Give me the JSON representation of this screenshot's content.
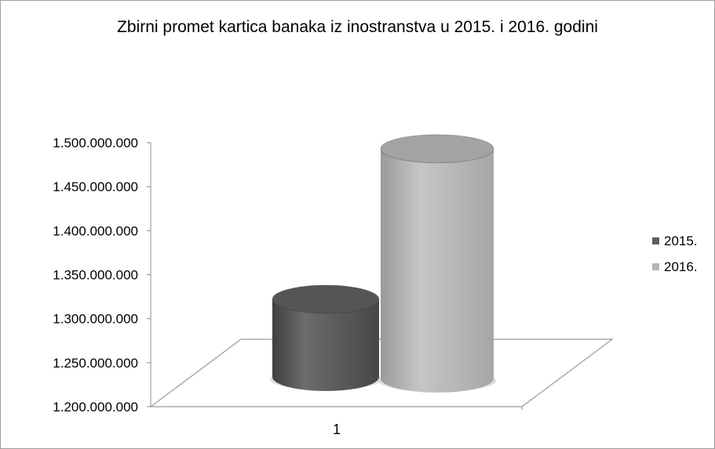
{
  "chart_data": {
    "type": "bar",
    "style": "3d-cylinder",
    "title": "Zbirni promet kartica banaka iz inostranstva u 2015. i 2016. godini",
    "categories": [
      "1"
    ],
    "series": [
      {
        "name": "2015.",
        "values": [
          1322000000
        ],
        "color": "#5f5f5f"
      },
      {
        "name": "2016.",
        "values": [
          1493000000
        ],
        "color": "#b5b5b5"
      }
    ],
    "yticks": [
      "1.200.000.000",
      "1.250.000.000",
      "1.300.000.000",
      "1.350.000.000",
      "1.400.000.000",
      "1.450.000.000",
      "1.500.000.000"
    ],
    "ylim": [
      1200000000,
      1500000000
    ],
    "xlabel": "",
    "ylabel": "",
    "grid": false,
    "legend_position": "right"
  }
}
